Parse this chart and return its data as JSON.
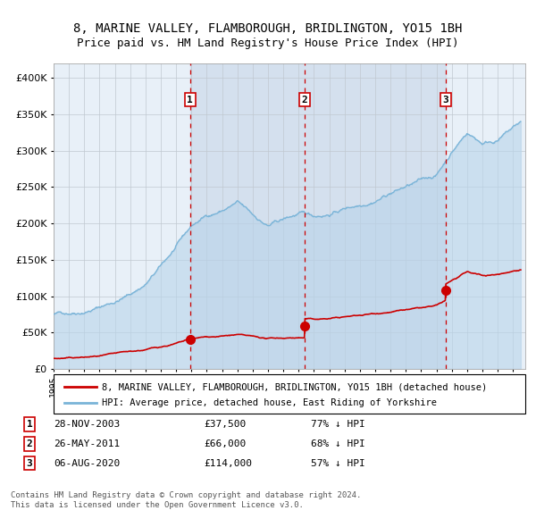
{
  "title": "8, MARINE VALLEY, FLAMBOROUGH, BRIDLINGTON, YO15 1BH",
  "subtitle": "Price paid vs. HM Land Registry's House Price Index (HPI)",
  "hpi_label": "HPI: Average price, detached house, East Riding of Yorkshire",
  "property_label": "8, MARINE VALLEY, FLAMBOROUGH, BRIDLINGTON, YO15 1BH (detached house)",
  "footnote1": "Contains HM Land Registry data © Crown copyright and database right 2024.",
  "footnote2": "This data is licensed under the Open Government Licence v3.0.",
  "sales": [
    {
      "num": 1,
      "date": "28-NOV-2003",
      "price": 37500,
      "pct": "77%",
      "x_year": 2003.91
    },
    {
      "num": 2,
      "date": "26-MAY-2011",
      "price": 66000,
      "pct": "68%",
      "x_year": 2011.4
    },
    {
      "num": 3,
      "date": "06-AUG-2020",
      "price": 114000,
      "pct": "57%",
      "x_year": 2020.6
    }
  ],
  "ylim": [
    0,
    420000
  ],
  "xlim_start": 1995,
  "xlim_end": 2025.8,
  "plot_bg": "#e8f0f8",
  "hpi_color": "#7ab4d8",
  "hpi_fill_color": "#b8d4ea",
  "price_color": "#cc0000",
  "dashed_color": "#cc0000",
  "marker_color": "#cc0000",
  "grid_color": "#c0c8d0",
  "shade_color": "#ccdaeb"
}
